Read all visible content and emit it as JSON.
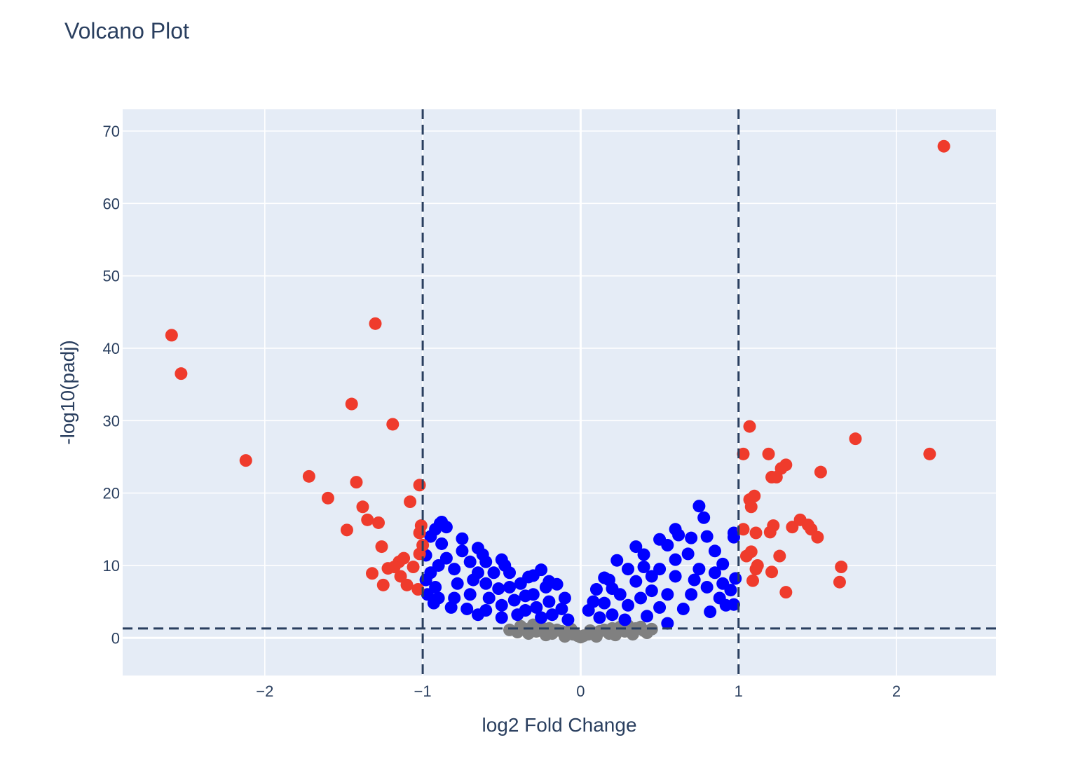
{
  "chart_data": {
    "type": "scatter",
    "title": "Volcano Plot",
    "xlabel": "log2 Fold Change",
    "ylabel": "-log10(padj)",
    "xlim": [
      -2.9,
      2.63
    ],
    "ylim": [
      -5.2,
      73
    ],
    "x_ticks": [
      {
        "value": -2,
        "label": "−2"
      },
      {
        "value": -1,
        "label": "−1"
      },
      {
        "value": 0,
        "label": "0"
      },
      {
        "value": 1,
        "label": "1"
      },
      {
        "value": 2,
        "label": "2"
      }
    ],
    "y_ticks": [
      {
        "value": 0,
        "label": "0"
      },
      {
        "value": 10,
        "label": "10"
      },
      {
        "value": 20,
        "label": "20"
      },
      {
        "value": 30,
        "label": "30"
      },
      {
        "value": 40,
        "label": "40"
      },
      {
        "value": 50,
        "label": "50"
      },
      {
        "value": 60,
        "label": "60"
      },
      {
        "value": 70,
        "label": "70"
      }
    ],
    "grid": true,
    "threshold_lines": {
      "vertical_x": [
        -1,
        1
      ],
      "horizontal_y": 1.3,
      "color": "#2a3f5f",
      "style": "dashed"
    },
    "colors": {
      "significant": "#ef3b2c",
      "pvalue_only": "#0000ff",
      "not_significant": "#808080",
      "plot_background": "#e5ecf6",
      "grid": "#ffffff"
    },
    "series": [
      {
        "color_key": "not_significant",
        "points": [
          [
            -0.3,
            1.8
          ],
          [
            -0.25,
            1.5
          ],
          [
            -0.2,
            1.3
          ],
          [
            -0.15,
            1.1
          ],
          [
            -0.12,
            0.9
          ],
          [
            -0.08,
            0.7
          ],
          [
            -0.05,
            0.5
          ],
          [
            -0.02,
            0.3
          ],
          [
            0.0,
            0.1
          ],
          [
            0.02,
            0.3
          ],
          [
            0.05,
            0.5
          ],
          [
            0.08,
            0.7
          ],
          [
            0.12,
            0.9
          ],
          [
            0.15,
            1.1
          ],
          [
            0.2,
            1.3
          ],
          [
            0.25,
            1.5
          ],
          [
            0.3,
            1.7
          ],
          [
            0.35,
            1.3
          ],
          [
            0.4,
            1.0
          ],
          [
            -0.35,
            1.2
          ],
          [
            -0.18,
            0.6
          ],
          [
            0.18,
            0.6
          ],
          [
            -0.1,
            0.2
          ],
          [
            0.1,
            0.2
          ],
          [
            -0.28,
            0.9
          ],
          [
            0.28,
            0.9
          ],
          [
            0.42,
            0.7
          ],
          [
            -0.4,
            0.8
          ],
          [
            0.45,
            1.2
          ],
          [
            -0.45,
            1.1
          ],
          [
            -0.22,
            0.4
          ],
          [
            0.22,
            0.4
          ],
          [
            0.33,
            0.5
          ],
          [
            -0.33,
            0.6
          ],
          [
            0.06,
            1.0
          ],
          [
            -0.06,
            1.2
          ],
          [
            0.38,
            1.5
          ],
          [
            -0.38,
            1.6
          ]
        ]
      },
      {
        "color_key": "pvalue_only",
        "points": [
          [
            -0.98,
            11.4
          ],
          [
            -0.95,
            14.0
          ],
          [
            -0.92,
            15.0
          ],
          [
            -0.89,
            15.8
          ],
          [
            -0.88,
            16.0
          ],
          [
            -0.85,
            15.3
          ],
          [
            -0.75,
            13.7
          ],
          [
            -0.65,
            12.4
          ],
          [
            -0.6,
            10.5
          ],
          [
            -0.5,
            10.8
          ],
          [
            -0.45,
            9.0
          ],
          [
            -0.3,
            8.6
          ],
          [
            -0.25,
            9.4
          ],
          [
            -0.15,
            7.4
          ],
          [
            -0.1,
            5.5
          ],
          [
            -0.95,
            9.0
          ],
          [
            -0.92,
            7.0
          ],
          [
            -0.9,
            5.5
          ],
          [
            -0.93,
            4.8
          ],
          [
            -0.97,
            6.0
          ],
          [
            -0.85,
            11.0
          ],
          [
            -0.8,
            9.5
          ],
          [
            -0.78,
            7.5
          ],
          [
            -0.8,
            5.5
          ],
          [
            -0.82,
            4.2
          ],
          [
            -0.7,
            10.5
          ],
          [
            -0.68,
            8.0
          ],
          [
            -0.7,
            6.0
          ],
          [
            -0.72,
            4.0
          ],
          [
            -0.65,
            3.2
          ],
          [
            -0.6,
            7.5
          ],
          [
            -0.58,
            5.5
          ],
          [
            -0.6,
            3.8
          ],
          [
            -0.55,
            9.0
          ],
          [
            -0.52,
            6.8
          ],
          [
            -0.5,
            4.5
          ],
          [
            -0.5,
            2.8
          ],
          [
            -0.45,
            7.0
          ],
          [
            -0.42,
            5.2
          ],
          [
            -0.4,
            3.2
          ],
          [
            -0.38,
            7.5
          ],
          [
            -0.35,
            5.8
          ],
          [
            -0.35,
            3.8
          ],
          [
            -0.3,
            6.0
          ],
          [
            -0.28,
            4.2
          ],
          [
            -0.25,
            2.8
          ],
          [
            -0.22,
            7.0
          ],
          [
            -0.2,
            5.0
          ],
          [
            -0.18,
            3.2
          ],
          [
            -0.12,
            4.0
          ],
          [
            -0.08,
            2.5
          ],
          [
            -0.88,
            13.0
          ],
          [
            -0.75,
            12.0
          ],
          [
            -0.62,
            11.5
          ],
          [
            -0.48,
            10.0
          ],
          [
            -0.33,
            8.4
          ],
          [
            -0.2,
            7.8
          ],
          [
            -0.98,
            8.0
          ],
          [
            -0.9,
            10.0
          ],
          [
            -0.65,
            9.0
          ],
          [
            0.05,
            3.8
          ],
          [
            0.08,
            5.0
          ],
          [
            0.1,
            6.7
          ],
          [
            0.15,
            8.3
          ],
          [
            0.2,
            6.8
          ],
          [
            0.23,
            10.7
          ],
          [
            0.3,
            9.5
          ],
          [
            0.35,
            12.6
          ],
          [
            0.4,
            11.5
          ],
          [
            0.45,
            8.5
          ],
          [
            0.5,
            13.6
          ],
          [
            0.55,
            12.8
          ],
          [
            0.6,
            15.0
          ],
          [
            0.62,
            14.2
          ],
          [
            0.7,
            13.8
          ],
          [
            0.75,
            18.2
          ],
          [
            0.78,
            16.6
          ],
          [
            0.8,
            14.0
          ],
          [
            0.85,
            12.0
          ],
          [
            0.9,
            10.2
          ],
          [
            0.97,
            14.5
          ],
          [
            0.97,
            13.9
          ],
          [
            0.98,
            8.2
          ],
          [
            0.95,
            6.6
          ],
          [
            0.97,
            4.6
          ],
          [
            0.92,
            4.5
          ],
          [
            0.88,
            5.5
          ],
          [
            0.82,
            3.6
          ],
          [
            0.8,
            7.0
          ],
          [
            0.75,
            9.5
          ],
          [
            0.7,
            6.0
          ],
          [
            0.65,
            4.0
          ],
          [
            0.6,
            8.5
          ],
          [
            0.6,
            10.8
          ],
          [
            0.55,
            6.0
          ],
          [
            0.5,
            9.5
          ],
          [
            0.5,
            4.2
          ],
          [
            0.45,
            6.5
          ],
          [
            0.42,
            3.0
          ],
          [
            0.38,
            5.5
          ],
          [
            0.35,
            7.8
          ],
          [
            0.3,
            4.5
          ],
          [
            0.28,
            2.5
          ],
          [
            0.25,
            6.0
          ],
          [
            0.2,
            3.2
          ],
          [
            0.18,
            8.0
          ],
          [
            0.15,
            4.8
          ],
          [
            0.12,
            2.8
          ],
          [
            0.68,
            11.6
          ],
          [
            0.72,
            8.0
          ],
          [
            0.85,
            9.0
          ],
          [
            0.9,
            7.5
          ],
          [
            0.55,
            2.0
          ],
          [
            0.4,
            9.8
          ]
        ]
      },
      {
        "color_key": "significant",
        "points": [
          [
            2.3,
            67.9
          ],
          [
            -2.59,
            41.8
          ],
          [
            -2.53,
            36.5
          ],
          [
            -1.3,
            43.4
          ],
          [
            -1.45,
            32.3
          ],
          [
            -1.19,
            29.5
          ],
          [
            -2.12,
            24.5
          ],
          [
            -1.72,
            22.3
          ],
          [
            -1.6,
            19.3
          ],
          [
            -1.42,
            21.5
          ],
          [
            -1.38,
            18.1
          ],
          [
            -1.35,
            16.3
          ],
          [
            -1.28,
            15.9
          ],
          [
            -1.48,
            14.9
          ],
          [
            -1.26,
            12.6
          ],
          [
            -1.08,
            18.8
          ],
          [
            -1.02,
            21.1
          ],
          [
            -1.01,
            15.5
          ],
          [
            -1.02,
            14.5
          ],
          [
            -1.0,
            12.8
          ],
          [
            -1.02,
            11.6
          ],
          [
            -1.12,
            11.0
          ],
          [
            -1.15,
            10.5
          ],
          [
            -1.18,
            9.8
          ],
          [
            -1.22,
            9.6
          ],
          [
            -1.06,
            9.8
          ],
          [
            -1.32,
            8.9
          ],
          [
            -1.14,
            8.5
          ],
          [
            -1.25,
            7.3
          ],
          [
            -1.1,
            7.3
          ],
          [
            -1.03,
            6.7
          ],
          [
            1.07,
            29.2
          ],
          [
            1.03,
            25.4
          ],
          [
            1.19,
            25.4
          ],
          [
            1.3,
            23.9
          ],
          [
            1.27,
            23.4
          ],
          [
            1.21,
            22.2
          ],
          [
            1.24,
            22.2
          ],
          [
            1.52,
            22.9
          ],
          [
            1.74,
            27.5
          ],
          [
            2.21,
            25.4
          ],
          [
            1.1,
            19.6
          ],
          [
            1.07,
            19.1
          ],
          [
            1.08,
            18.1
          ],
          [
            1.03,
            15.0
          ],
          [
            1.11,
            14.5
          ],
          [
            1.2,
            14.6
          ],
          [
            1.22,
            15.5
          ],
          [
            1.34,
            15.3
          ],
          [
            1.39,
            16.3
          ],
          [
            1.44,
            15.6
          ],
          [
            1.46,
            15.0
          ],
          [
            1.5,
            13.9
          ],
          [
            1.08,
            11.9
          ],
          [
            1.05,
            11.3
          ],
          [
            1.26,
            11.3
          ],
          [
            1.12,
            10.0
          ],
          [
            1.11,
            9.5
          ],
          [
            1.21,
            9.1
          ],
          [
            1.09,
            7.9
          ],
          [
            1.65,
            9.8
          ],
          [
            1.64,
            7.7
          ],
          [
            1.3,
            6.3
          ]
        ]
      }
    ]
  }
}
